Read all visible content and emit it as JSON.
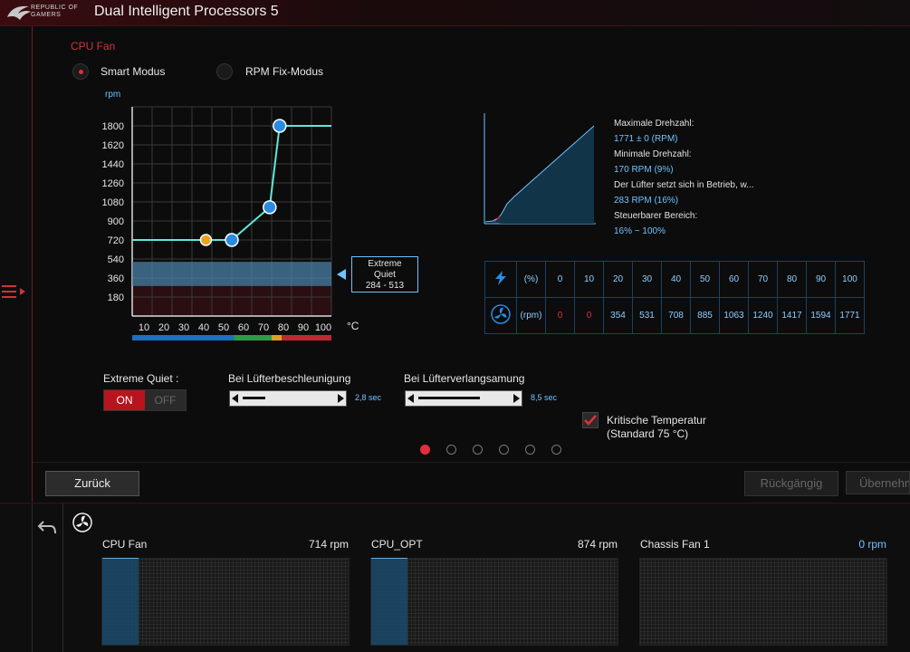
{
  "app": {
    "title": "Dual Intelligent Processors 5",
    "logo_line1": "REPUBLIC OF",
    "logo_line2": "GAMERS"
  },
  "fan_section": {
    "title": "CPU Fan"
  },
  "modes": [
    {
      "label": "Smart Modus",
      "selected": true
    },
    {
      "label": "RPM Fix-Modus",
      "selected": false
    }
  ],
  "chart_data": {
    "type": "line",
    "ylabel": "rpm",
    "xlabel": "°C",
    "yticks": [
      1800,
      1620,
      1440,
      1260,
      1080,
      900,
      720,
      540,
      360,
      180
    ],
    "xticks": [
      10,
      20,
      30,
      40,
      50,
      60,
      70,
      80,
      90,
      100
    ],
    "xlim": [
      0,
      100
    ],
    "ylim": [
      0,
      1980
    ],
    "series": [
      {
        "x": [
          0,
          37,
          50,
          69,
          74,
          100
        ],
        "y": [
          720,
          720,
          720,
          1030,
          1800,
          1800
        ]
      }
    ],
    "control_points": [
      {
        "x": 37,
        "y": 720,
        "color": "#e8a320"
      },
      {
        "x": 50,
        "y": 720,
        "color": "#2a8be0"
      },
      {
        "x": 69,
        "y": 1030,
        "color": "#2a8be0"
      },
      {
        "x": 74,
        "y": 1800,
        "color": "#2a8be0"
      }
    ],
    "band": {
      "from": 284,
      "to": 513
    },
    "temp_zones": [
      {
        "from": 0,
        "to": 51,
        "color": "#1e6fc0"
      },
      {
        "from": 51,
        "to": 70,
        "color": "#2e9a48"
      },
      {
        "from": 70,
        "to": 75,
        "color": "#e0a020"
      },
      {
        "from": 75,
        "to": 100,
        "color": "#c02830"
      }
    ]
  },
  "extreme_quiet_box": {
    "line1": "Extreme",
    "line2": "Quiet",
    "range": "284 - 513"
  },
  "info": {
    "max_label": "Maximale Drehzahl:",
    "max_value": "1771 ± 0 (RPM)",
    "min_label": "Minimale Drehzahl:",
    "min_value": "170 RPM (9%)",
    "start_label": "Der Lüfter setzt sich in Betrieb, w...",
    "start_value": "283 RPM (16%)",
    "range_label": "Steuerbarer Bereich:",
    "range_value": "16% ~ 100%"
  },
  "table": {
    "row1_unit": "(%)",
    "row2_unit": "(rpm)",
    "percent": [
      "0",
      "10",
      "20",
      "30",
      "40",
      "50",
      "60",
      "70",
      "80",
      "90",
      "100"
    ],
    "rpm": [
      "0",
      "0",
      "354",
      "531",
      "708",
      "885",
      "1063",
      "1240",
      "1417",
      "1594",
      "1771"
    ]
  },
  "controls": {
    "extreme_quiet_label": "Extreme Quiet :",
    "on_label": "ON",
    "off_label": "OFF",
    "accel_label": "Bei Lüfterbeschleunigung",
    "accel_value": "2,8 sec",
    "accel_level": 0.25,
    "decel_label": "Bei Lüfterverlangsamung",
    "decel_value": "8,5 sec",
    "decel_level": 0.68,
    "critical_label1": "Kritische Temperatur",
    "critical_label2": "(Standard 75 °C)",
    "critical_checked": true
  },
  "pager": {
    "count": 6,
    "active": 0
  },
  "buttons": {
    "back": "Zurück",
    "undo": "Rückgängig",
    "apply": "Übernehmen"
  },
  "monitors": [
    {
      "name": "CPU Fan",
      "value": "714 rpm",
      "fill": 0.4
    },
    {
      "name": "CPU_OPT",
      "value": "874 rpm",
      "fill": 0.4
    },
    {
      "name": "Chassis Fan 1",
      "value": "0 rpm",
      "fill": 0
    }
  ],
  "colors": {
    "accent": "#e0303a",
    "curve": "#5fe8d8",
    "blue": "#6ec3ff"
  }
}
